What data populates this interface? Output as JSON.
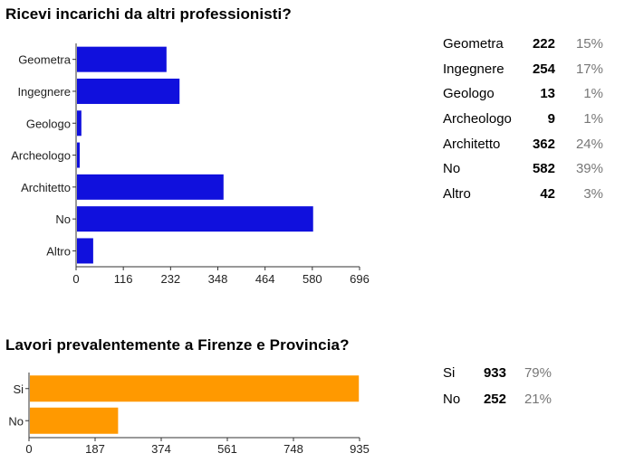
{
  "chart_data": [
    {
      "type": "bar",
      "orientation": "horizontal",
      "title": "Ricevi incarichi da altri professionisti?",
      "categories": [
        "Geometra",
        "Ingegnere",
        "Geologo",
        "Archeologo",
        "Architetto",
        "No",
        "Altro"
      ],
      "values": [
        222,
        254,
        13,
        9,
        362,
        582,
        42
      ],
      "percentages": [
        "15%",
        "17%",
        "1%",
        "1%",
        "24%",
        "39%",
        "3%"
      ],
      "xlim": [
        0,
        696
      ],
      "xticks": [
        "0",
        "116",
        "232",
        "348",
        "464",
        "580",
        "696"
      ],
      "color": "#1010dd",
      "grid": false
    },
    {
      "type": "bar",
      "orientation": "horizontal",
      "title": "Lavori prevalentemente a Firenze e Provincia?",
      "categories": [
        "Si",
        "No"
      ],
      "values": [
        933,
        252
      ],
      "percentages": [
        "79%",
        "21%"
      ],
      "xlim": [
        0,
        935
      ],
      "xticks": [
        "0",
        "187",
        "374",
        "561",
        "748",
        "935"
      ],
      "color": "#ff9900",
      "grid": false
    }
  ]
}
